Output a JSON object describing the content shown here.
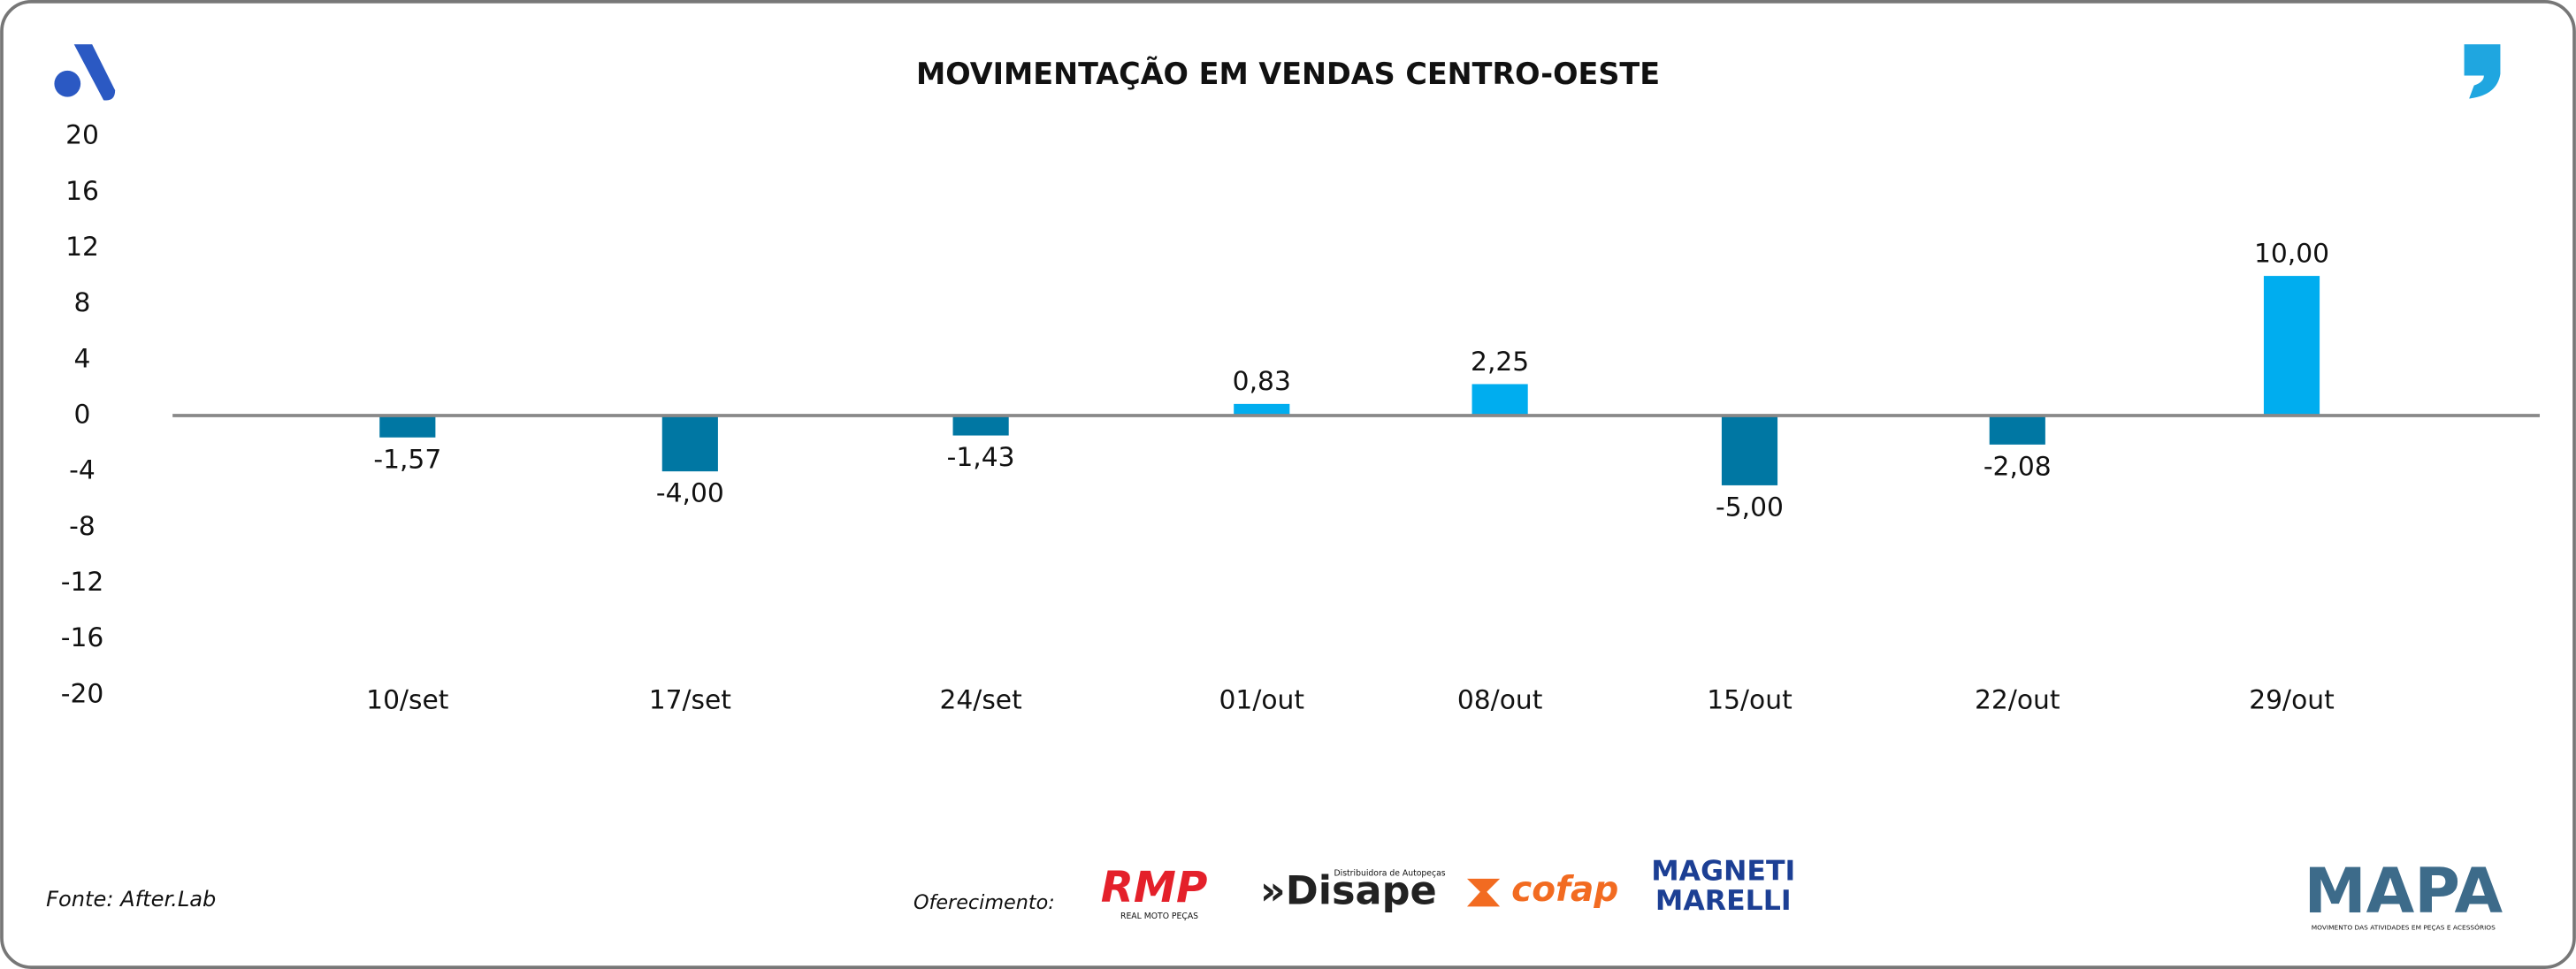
{
  "chart_data": {
    "type": "bar",
    "title": "MOVIMENTAÇÃO EM VENDAS CENTRO-OESTE",
    "categories": [
      "10/set",
      "17/set",
      "24/set",
      "01/out",
      "08/out",
      "15/out",
      "22/out",
      "29/out"
    ],
    "values": [
      -1.57,
      -4.0,
      -1.43,
      0.83,
      2.25,
      -5.0,
      -2.08,
      10.0
    ],
    "value_labels": [
      "-1,57",
      "-4,00",
      "-1,43",
      "0,83",
      "2,25",
      "-5,00",
      "-2,08",
      "10,00"
    ],
    "colors": [
      "#0077a3",
      "#0077a3",
      "#0077a3",
      "#00adef",
      "#00adef",
      "#0077a3",
      "#0077a3",
      "#00adef"
    ],
    "ylim": [
      -20,
      20
    ],
    "yticks": [
      20,
      16,
      12,
      8,
      4,
      0,
      -4,
      -8,
      -12,
      -16,
      -20
    ]
  },
  "footer": {
    "source": "Fonte: After.Lab",
    "sponsor_label": "Oferecimento:",
    "sponsors": [
      "RMP",
      "REAL MOTO PEÇAS",
      "»Disape",
      "Distribuidora de Autopeças",
      "cofap",
      "MAGNETI",
      "MARELLI"
    ],
    "brand": "MAPA",
    "brand_tagline": "MOVIMENTO DAS ATIVIDADES EM PEÇAS E ACESSÓRIOS"
  }
}
